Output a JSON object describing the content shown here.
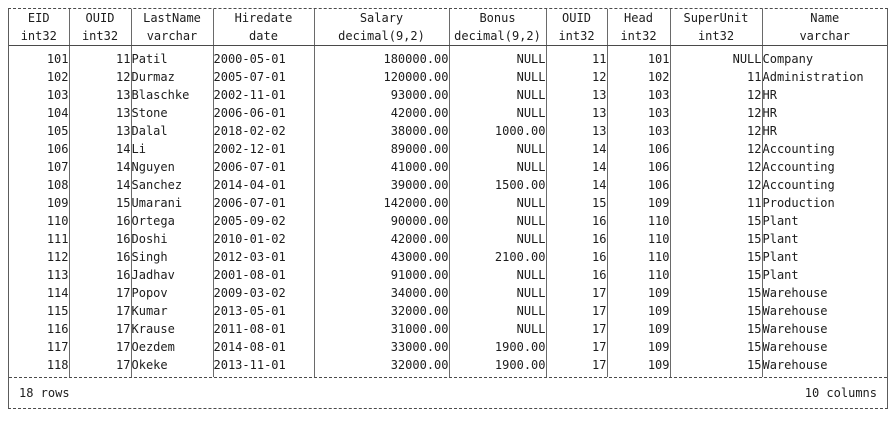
{
  "table": {
    "columns": [
      {
        "name": "EID",
        "type": "int32"
      },
      {
        "name": "OUID",
        "type": "int32"
      },
      {
        "name": "LastName",
        "type": "varchar"
      },
      {
        "name": "Hiredate",
        "type": "date"
      },
      {
        "name": "Salary",
        "type": "decimal(9,2)"
      },
      {
        "name": "Bonus",
        "type": "decimal(9,2)"
      },
      {
        "name": "OUID",
        "type": "int32"
      },
      {
        "name": "Head",
        "type": "int32"
      },
      {
        "name": "SuperUnit",
        "type": "int32"
      },
      {
        "name": "Name",
        "type": "varchar"
      }
    ],
    "rows": [
      [
        "101",
        "11",
        "Patil",
        "2000-05-01",
        "180000.00",
        "NULL",
        "11",
        "101",
        "NULL",
        "Company"
      ],
      [
        "102",
        "12",
        "Durmaz",
        "2005-07-01",
        "120000.00",
        "NULL",
        "12",
        "102",
        "11",
        "Administration"
      ],
      [
        "103",
        "13",
        "Blaschke",
        "2002-11-01",
        "93000.00",
        "NULL",
        "13",
        "103",
        "12",
        "HR"
      ],
      [
        "104",
        "13",
        "Stone",
        "2006-06-01",
        "42000.00",
        "NULL",
        "13",
        "103",
        "12",
        "HR"
      ],
      [
        "105",
        "13",
        "Dalal",
        "2018-02-02",
        "38000.00",
        "1000.00",
        "13",
        "103",
        "12",
        "HR"
      ],
      [
        "106",
        "14",
        "Li",
        "2002-12-01",
        "89000.00",
        "NULL",
        "14",
        "106",
        "12",
        "Accounting"
      ],
      [
        "107",
        "14",
        "Nguyen",
        "2006-07-01",
        "41000.00",
        "NULL",
        "14",
        "106",
        "12",
        "Accounting"
      ],
      [
        "108",
        "14",
        "Sanchez",
        "2014-04-01",
        "39000.00",
        "1500.00",
        "14",
        "106",
        "12",
        "Accounting"
      ],
      [
        "109",
        "15",
        "Umarani",
        "2006-07-01",
        "142000.00",
        "NULL",
        "15",
        "109",
        "11",
        "Production"
      ],
      [
        "110",
        "16",
        "Ortega",
        "2005-09-02",
        "90000.00",
        "NULL",
        "16",
        "110",
        "15",
        "Plant"
      ],
      [
        "111",
        "16",
        "Doshi",
        "2010-01-02",
        "42000.00",
        "NULL",
        "16",
        "110",
        "15",
        "Plant"
      ],
      [
        "112",
        "16",
        "Singh",
        "2012-03-01",
        "43000.00",
        "2100.00",
        "16",
        "110",
        "15",
        "Plant"
      ],
      [
        "113",
        "16",
        "Jadhav",
        "2001-08-01",
        "91000.00",
        "NULL",
        "16",
        "110",
        "15",
        "Plant"
      ],
      [
        "114",
        "17",
        "Popov",
        "2009-03-02",
        "34000.00",
        "NULL",
        "17",
        "109",
        "15",
        "Warehouse"
      ],
      [
        "115",
        "17",
        "Kumar",
        "2013-05-01",
        "32000.00",
        "NULL",
        "17",
        "109",
        "15",
        "Warehouse"
      ],
      [
        "116",
        "17",
        "Krause",
        "2011-08-01",
        "31000.00",
        "NULL",
        "17",
        "109",
        "15",
        "Warehouse"
      ],
      [
        "117",
        "17",
        "Oezdem",
        "2014-08-01",
        "33000.00",
        "1900.00",
        "17",
        "109",
        "15",
        "Warehouse"
      ],
      [
        "118",
        "17",
        "Okeke",
        "2013-11-01",
        "32000.00",
        "1900.00",
        "17",
        "109",
        "15",
        "Warehouse"
      ]
    ],
    "footer": {
      "row_count": "18 rows",
      "column_count": "10 columns"
    }
  },
  "colors": {
    "text": "#1c1c1c",
    "border": "#5c5c5c",
    "background": "#ffffff"
  }
}
